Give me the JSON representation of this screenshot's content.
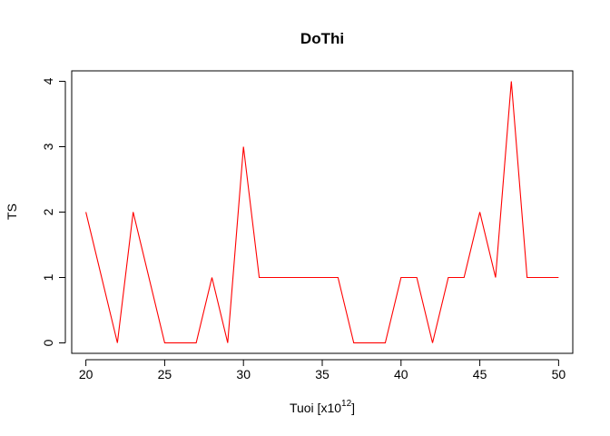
{
  "chart_data": {
    "type": "line",
    "title": "DoThi",
    "xlabel": "Tuoi [x10",
    "xlabel_superscript": "12",
    "xlabel_suffix": "]",
    "ylabel": "TS",
    "xlim": [
      19.1,
      50.9
    ],
    "ylim": [
      -0.16,
      4.16
    ],
    "x_ticks": [
      20,
      25,
      30,
      35,
      40,
      45,
      50
    ],
    "y_ticks": [
      0,
      1,
      2,
      3,
      4
    ],
    "grid": false,
    "legend": "none",
    "series": [
      {
        "color": "#ff0000",
        "x": [
          20,
          21,
          22,
          23,
          24,
          25,
          26,
          27,
          28,
          29,
          30,
          31,
          32,
          33,
          34,
          35,
          36,
          37,
          38,
          39,
          40,
          41,
          42,
          43,
          44,
          45,
          46,
          47,
          48,
          49,
          50
        ],
        "y": [
          2,
          1,
          0,
          2,
          1,
          0,
          0,
          0,
          1,
          0,
          3,
          1,
          1,
          1,
          1,
          1,
          1,
          0,
          0,
          0,
          1,
          1,
          0,
          1,
          1,
          2,
          1,
          4,
          1,
          1,
          1
        ]
      }
    ]
  }
}
